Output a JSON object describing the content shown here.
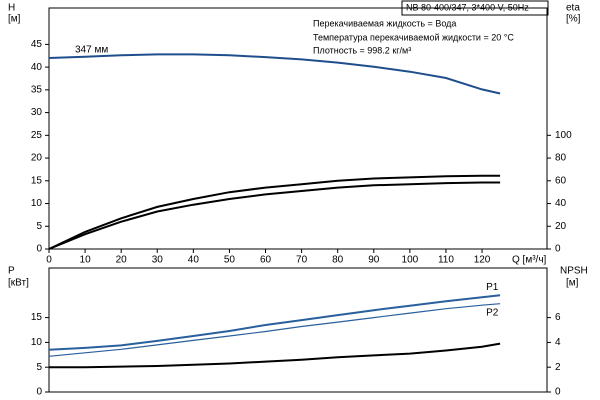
{
  "chart_data": [
    {
      "type": "line",
      "box_title": "NB 80-400/347, 3*400 V, 50Hz",
      "annotations": [
        "Перекачиваемая жидкость = Вода",
        "Температура перекачиваемой жидкости = 20 °C",
        "Плотность = 998.2 кг/м³"
      ],
      "y_label": "H",
      "y_unit": "[м]",
      "y2_label": "eta",
      "y2_unit": "[%]",
      "x_label": "Q [м³/ч]",
      "x": [
        0,
        10,
        20,
        30,
        40,
        50,
        60,
        70,
        80,
        90,
        100,
        110,
        120,
        125
      ],
      "xlim": [
        0,
        138
      ],
      "xticks": [
        0,
        10,
        20,
        30,
        40,
        50,
        60,
        70,
        80,
        90,
        100,
        110,
        120
      ],
      "ylim": [
        0,
        53
      ],
      "yticks": [
        0,
        5,
        10,
        15,
        20,
        25,
        30,
        35,
        40,
        45
      ],
      "y2lim": [
        0,
        212
      ],
      "y2ticks": [
        0,
        20,
        40,
        60,
        80,
        100
      ],
      "series": [
        {
          "name": "347 мм",
          "color": "#1f4e8c",
          "values": [
            42.0,
            42.3,
            42.6,
            42.8,
            42.8,
            42.6,
            42.2,
            41.7,
            41.0,
            40.1,
            39.0,
            37.6,
            35.1,
            34.2
          ]
        },
        {
          "color": "#000000",
          "axis": "y2",
          "values": [
            0,
            15,
            27,
            37,
            44,
            50,
            54,
            57,
            60,
            62,
            63,
            64,
            64.5,
            64.5
          ]
        },
        {
          "color": "#000000",
          "axis": "y2",
          "values": [
            0,
            13,
            24,
            33,
            39,
            44,
            48,
            51,
            54,
            56,
            57,
            58,
            58.5,
            58.5
          ]
        }
      ]
    },
    {
      "type": "line",
      "y_label": "P",
      "y_unit": "[кВт]",
      "y2_label": "NPSH",
      "y2_unit": "[м]",
      "x": [
        0,
        10,
        20,
        30,
        40,
        50,
        60,
        70,
        80,
        90,
        100,
        110,
        120,
        125
      ],
      "xlim": [
        0,
        138
      ],
      "ylim": [
        0,
        25
      ],
      "yticks": [
        0,
        5,
        10,
        15
      ],
      "y2lim": [
        0,
        10
      ],
      "y2ticks": [
        0,
        2,
        4,
        6
      ],
      "series": [
        {
          "name": "P1",
          "color": "#2a5f9e",
          "values": [
            8.5,
            8.9,
            9.4,
            10.3,
            11.3,
            12.3,
            13.5,
            14.5,
            15.5,
            16.5,
            17.4,
            18.3,
            19.1,
            19.5
          ]
        },
        {
          "name": "P2",
          "color": "#2a5f9e",
          "values": [
            7.2,
            7.9,
            8.6,
            9.5,
            10.4,
            11.3,
            12.2,
            13.2,
            14.1,
            15.0,
            15.9,
            16.8,
            17.5,
            17.8
          ]
        },
        {
          "color": "#000000",
          "axis": "y2",
          "values": [
            2.0,
            2.0,
            2.05,
            2.1,
            2.2,
            2.3,
            2.45,
            2.6,
            2.8,
            2.95,
            3.1,
            3.35,
            3.65,
            3.9
          ]
        }
      ]
    }
  ]
}
